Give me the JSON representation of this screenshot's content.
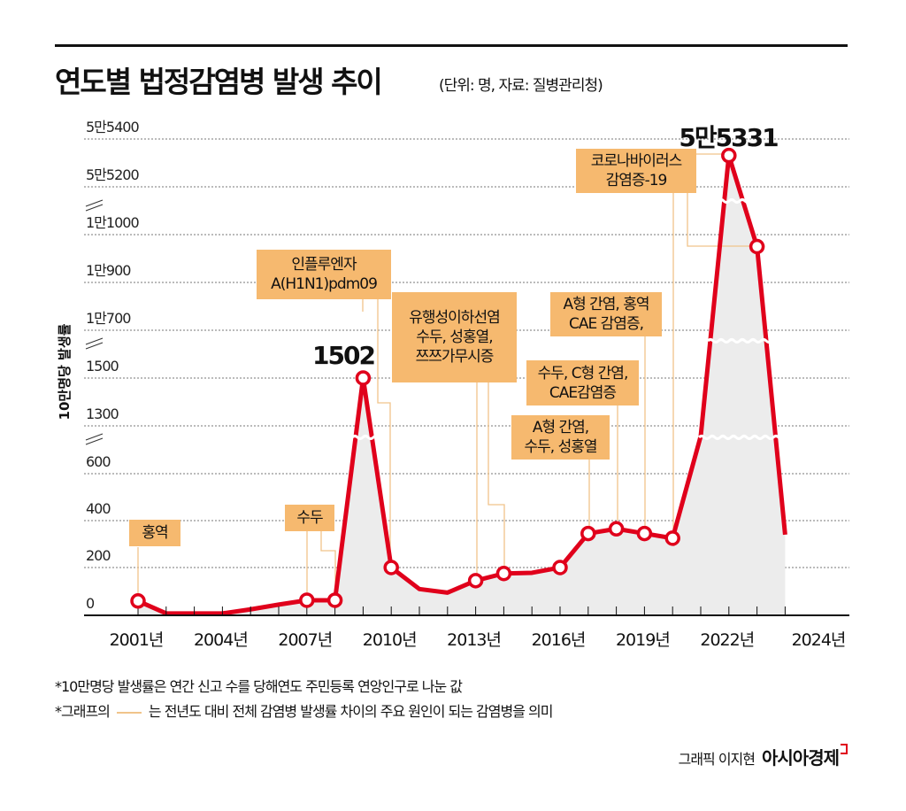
{
  "header": {
    "title": "연도별 법정감염병 발생 추이",
    "subtitle": "(단위: 명, 자료: 질병관리청)"
  },
  "chart_data": {
    "type": "line",
    "title": "연도별 법정감염병 발생 추이",
    "ylabel": "10만명당 발생률",
    "xlabel": "",
    "y_ticks": [
      0,
      200,
      400,
      600,
      1300,
      1500,
      10700,
      10900,
      11000,
      55200,
      55400
    ],
    "y_tick_labels": [
      "0",
      "200",
      "400",
      "600",
      "1300",
      "1500",
      "1만700",
      "1만900",
      "1만1000",
      "5만5200",
      "5만5400"
    ],
    "y_axis_breaks": [
      "600-1300",
      "1500-10700",
      "11000-55200"
    ],
    "x_tick_labels": [
      "2001년",
      "2004년",
      "2007년",
      "2010년",
      "2013년",
      "2016년",
      "2019년",
      "2022년",
      "2024년"
    ],
    "x_tick_years": [
      2001,
      2004,
      2007,
      2010,
      2013,
      2016,
      2019,
      2022,
      2024
    ],
    "grid": true,
    "series": [
      {
        "name": "10만명당 발생률",
        "color": "#e0001b",
        "x": [
          2001,
          2002,
          2003,
          2004,
          2005,
          2006,
          2007,
          2008,
          2009,
          2010,
          2011,
          2012,
          2013,
          2014,
          2015,
          2016,
          2017,
          2018,
          2019,
          2020,
          2021,
          2022,
          2023,
          2024
        ],
        "values": [
          60,
          8,
          8,
          8,
          25,
          45,
          63,
          63,
          1502,
          200,
          110,
          95,
          145,
          175,
          178,
          200,
          345,
          365,
          345,
          325,
          1150,
          55331,
          10975,
          340
        ],
        "markers": [
          2001,
          2007,
          2008,
          2009,
          2010,
          2013,
          2014,
          2016,
          2017,
          2018,
          2019,
          2020,
          2022,
          2023
        ]
      }
    ],
    "data_labels": [
      {
        "year": 2009,
        "text": "1502"
      },
      {
        "year": 2022,
        "text": "5만5331"
      }
    ],
    "annotations": [
      {
        "lines": [
          "홍역"
        ]
      },
      {
        "lines": [
          "수두"
        ]
      },
      {
        "lines": [
          "인플루엔자",
          "A(H1N1)pdm09"
        ]
      },
      {
        "lines": [
          "유행성이하선염",
          "수두, 성홍열,",
          "쯔쯔가무시증"
        ]
      },
      {
        "lines": [
          "A형 간염, 홍역",
          "CAE 감염증,"
        ]
      },
      {
        "lines": [
          "수두, C형 간염,",
          "CAE감염증"
        ]
      },
      {
        "lines": [
          "A형 간염,",
          "수두, 성홍열"
        ]
      },
      {
        "lines": [
          "코로나바이러스",
          "감염증-19"
        ]
      }
    ],
    "colors": {
      "line": "#e0001b",
      "fill": "#ececec",
      "annotation": "#f6b96f",
      "connector": "#f0c48a"
    }
  },
  "footer": {
    "note1": "*10만명당 발생률은 연간 신고 수를 당해연도 주민등록 연앙인구로 나눈 값",
    "note2_prefix": "*그래프의",
    "note2_suffix": "는 전년도 대비 전체 감염병 발생률 차이의 주요 원인이 되는 감염병을 의미",
    "credit": "그래픽 이지현",
    "brand": "아시아경제"
  }
}
